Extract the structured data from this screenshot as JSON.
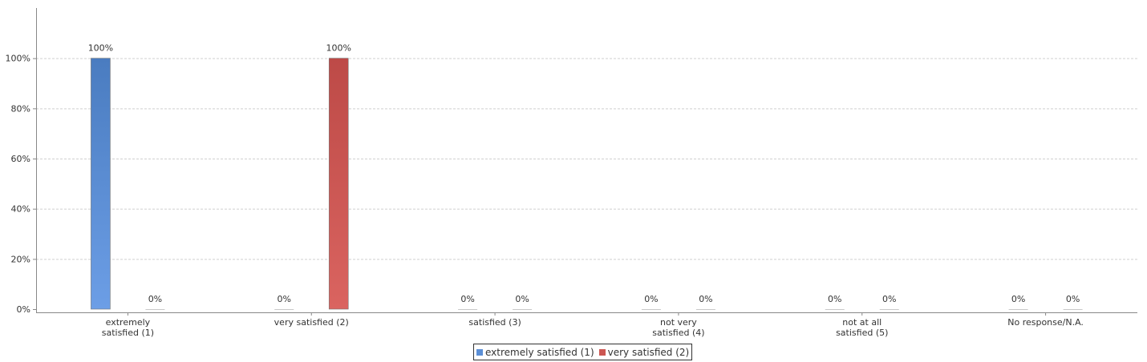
{
  "chart_data": {
    "type": "bar",
    "title": "",
    "xlabel": "",
    "ylabel": "",
    "ylim": [
      0,
      120
    ],
    "yticks": [
      0,
      20,
      40,
      60,
      80,
      100
    ],
    "ytick_labels": [
      "0%",
      "20%",
      "40%",
      "60%",
      "80%",
      "100%"
    ],
    "grid": true,
    "legend_position": "bottom-center",
    "categories": [
      [
        "extremely",
        "satisfied (1)"
      ],
      [
        "very satisfied (2)"
      ],
      [
        "satisfied (3)"
      ],
      [
        "not very",
        "satisfied (4)"
      ],
      [
        "not at all",
        "satisfied (5)"
      ],
      [
        "No response/N.A."
      ]
    ],
    "series": [
      {
        "name": "extremely satisfied (1)",
        "color": "#5b8fd6",
        "values": [
          100,
          0,
          0,
          0,
          0,
          0
        ],
        "labels": [
          "100%",
          "0%",
          "0%",
          "0%",
          "0%",
          "0%"
        ]
      },
      {
        "name": "very satisfied (2)",
        "color": "#cc5652",
        "values": [
          0,
          100,
          0,
          0,
          0,
          0
        ],
        "labels": [
          "0%",
          "100%",
          "0%",
          "0%",
          "0%",
          "0%"
        ]
      }
    ]
  }
}
